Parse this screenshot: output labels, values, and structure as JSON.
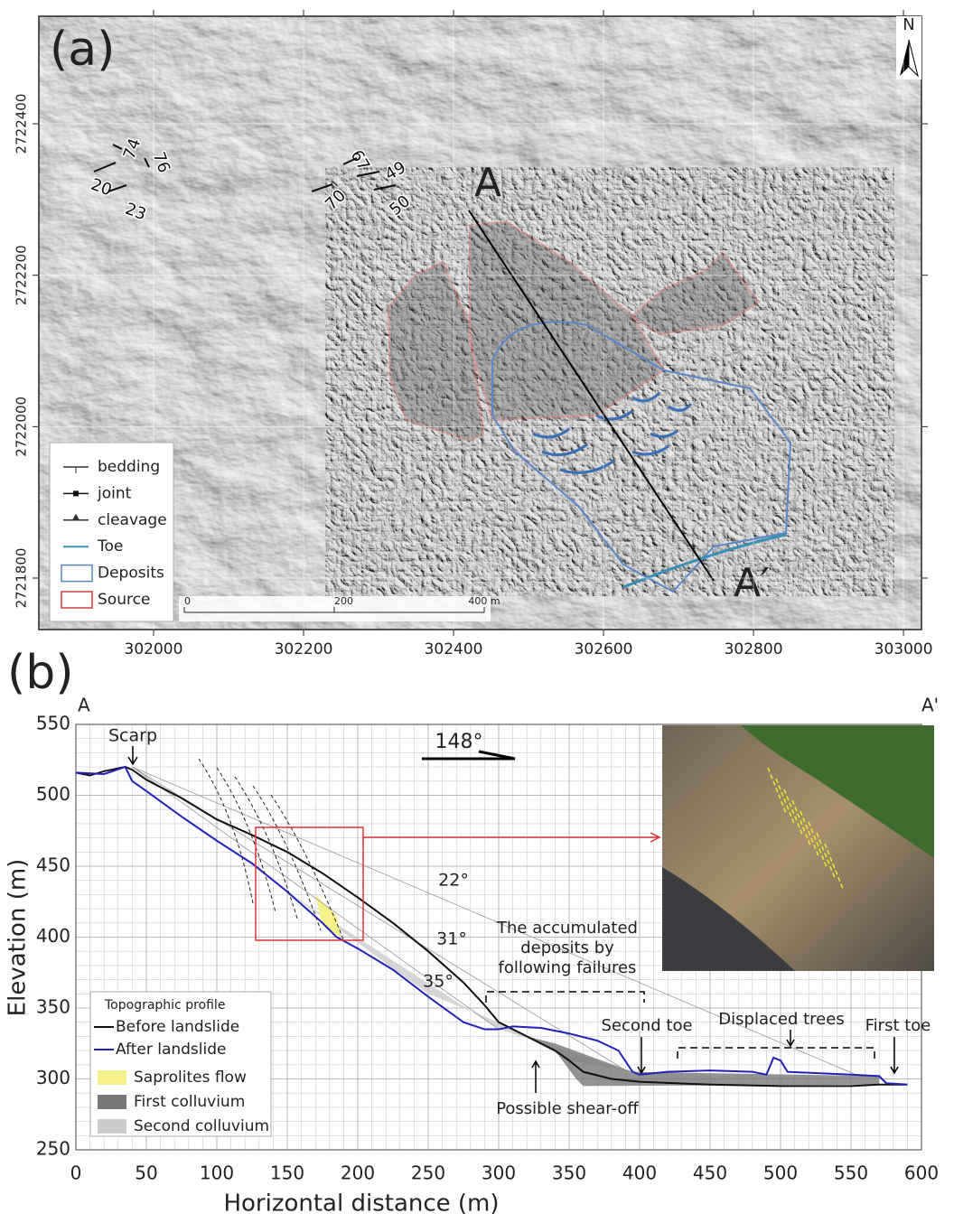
{
  "chart_data": [
    {
      "type": "map",
      "panel_label": "(a)",
      "xlim": [
        301847,
        303024
      ],
      "ylim": [
        2721732,
        2722542
      ],
      "xticks": [
        302000,
        302200,
        302400,
        302600,
        302800,
        303000
      ],
      "yticks": [
        2721800,
        2722000,
        2722200,
        2722400
      ],
      "grid": true,
      "north": "N",
      "section_start": "A",
      "section_end": "A′",
      "dips": [
        74,
        76,
        20,
        23,
        67,
        49,
        70,
        50
      ],
      "scale_bar": [
        0,
        200,
        {
          "value": 400,
          "label": "400 m"
        }
      ],
      "legend": [
        "bedding",
        "joint",
        "cleavage",
        "Toe",
        "Deposits",
        "Source"
      ],
      "legend_colors": [
        "#333333",
        "#111111",
        "#333333",
        "#3a8fb5",
        "#5b86c9",
        "#d33b3b"
      ]
    },
    {
      "type": "line",
      "panel_label": "(b)",
      "section_start": "A",
      "section_end": "A'",
      "x_label": "Horizontal distance (m)",
      "y_label": "Elevation (m)",
      "xlim": [
        0,
        600
      ],
      "ylim": [
        250,
        550
      ],
      "xticks": [
        0,
        50,
        100,
        150,
        200,
        250,
        300,
        350,
        400,
        450,
        500,
        550,
        600
      ],
      "yticks": [
        250,
        300,
        350,
        400,
        450,
        500,
        550
      ],
      "grid": true,
      "legend_title": "Topographic profile",
      "series": [
        {
          "name": "Before landslide",
          "color": "#111111",
          "x": [
            0,
            10,
            20,
            35,
            40,
            50,
            75,
            100,
            125,
            150,
            175,
            200,
            225,
            250,
            275,
            290,
            300,
            320,
            340,
            350,
            360,
            380,
            400,
            450,
            500,
            550,
            570,
            590
          ],
          "values": [
            516,
            514,
            517,
            520,
            518,
            511,
            498,
            483,
            472,
            460,
            445,
            428,
            410,
            390,
            368,
            352,
            340,
            330,
            320,
            313,
            305,
            300,
            298,
            296,
            295,
            295,
            296,
            296
          ]
        },
        {
          "name": "After landslide",
          "color": "#2222bb",
          "x": [
            0,
            20,
            35,
            40,
            50,
            75,
            100,
            125,
            150,
            175,
            185,
            200,
            225,
            250,
            275,
            290,
            300,
            310,
            330,
            350,
            370,
            385,
            395,
            400,
            420,
            450,
            480,
            490,
            495,
            500,
            505,
            550,
            570,
            575,
            590
          ],
          "values": [
            516,
            515,
            520,
            510,
            503,
            485,
            468,
            452,
            432,
            410,
            400,
            392,
            377,
            358,
            340,
            335,
            335,
            337,
            336,
            332,
            327,
            320,
            305,
            303,
            305,
            306,
            305,
            303,
            315,
            313,
            305,
            303,
            302,
            297,
            296
          ]
        }
      ],
      "fill_legend": [
        "Saprolites flow",
        "First colluvium",
        "Second colluvium"
      ],
      "annotations": {
        "scarp": "Scarp",
        "direction": "148°",
        "angle_1": "22°",
        "angle_2": "31°",
        "angle_3": "35°",
        "accumulated": [
          "The accumulated",
          "deposits by",
          "following failures"
        ],
        "second_toe": "Second toe",
        "displaced_trees": "Displaced trees",
        "first_toe": "First toe",
        "shear_off": "Possible shear-off"
      }
    }
  ]
}
